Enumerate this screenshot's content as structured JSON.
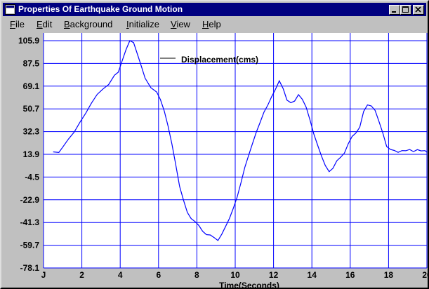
{
  "window": {
    "title": "Properties Of Earthquake Ground Motion",
    "controls": {
      "minimize": "minimize-icon",
      "maximize": "maximize-icon",
      "close": "close-icon"
    }
  },
  "menu": [
    {
      "label": "File",
      "mnemonic": "F"
    },
    {
      "label": "Edit",
      "mnemonic": "E"
    },
    {
      "label": "Background",
      "mnemonic": "B"
    },
    {
      "label": "Initialize",
      "mnemonic": "I"
    },
    {
      "label": "View",
      "mnemonic": "V"
    },
    {
      "label": "Help",
      "mnemonic": "H"
    }
  ],
  "colors": {
    "plot_bg": "#ffffff",
    "grid": "#0000ff",
    "trace": "#0000ff",
    "titlebar": "#000080"
  },
  "chart_data": {
    "type": "line",
    "title": "Displacement(cms)",
    "xlabel": "Time(Seconds)",
    "ylabel": "",
    "xlim": [
      0,
      20
    ],
    "ylim": [
      -78.1,
      105.9
    ],
    "x_tick_labels": [
      "J",
      "2",
      "4",
      "6",
      "8",
      "10",
      "12",
      "14",
      "16",
      "18",
      "20"
    ],
    "y_tick_labels": [
      "105.9",
      "87.5",
      "69.1",
      "50.7",
      "32.3",
      "13.9",
      "-4.5",
      "-22.9",
      "-41.3",
      "-59.7",
      "-78.1"
    ],
    "grid": true,
    "series": [
      {
        "x": [
          0.5,
          0.8,
          1.0,
          1.3,
          1.6,
          1.9,
          2.2,
          2.5,
          2.8,
          3.1,
          3.4,
          3.7,
          3.9,
          4.1,
          4.3,
          4.5,
          4.7,
          4.9,
          5.1,
          5.3,
          5.6,
          5.9,
          6.1,
          6.3,
          6.5,
          6.7,
          6.9,
          7.1,
          7.3,
          7.5,
          7.7,
          7.9,
          8.1,
          8.3,
          8.5,
          8.7,
          8.9,
          9.1,
          9.3,
          9.5,
          9.7,
          9.9,
          10.1,
          10.3,
          10.5,
          10.7,
          10.9,
          11.1,
          11.3,
          11.5,
          11.7,
          11.9,
          12.1,
          12.3,
          12.5,
          12.7,
          12.9,
          13.1,
          13.3,
          13.5,
          13.7,
          13.9,
          14.1,
          14.3,
          14.5,
          14.7,
          14.9,
          15.1,
          15.3,
          15.5,
          15.7,
          15.9,
          16.1,
          16.3,
          16.5,
          16.7,
          16.9,
          17.1,
          17.3,
          17.5,
          17.7,
          17.9,
          18.1,
          18.3,
          18.5,
          18.7,
          18.9,
          19.1,
          19.3,
          19.5,
          19.7,
          19.9,
          20.0
        ],
        "y": [
          15.9,
          15.4,
          19.7,
          26.3,
          31.9,
          39.9,
          47.2,
          55.4,
          62.4,
          66.8,
          70.4,
          77.9,
          80.4,
          89.5,
          98.5,
          105.9,
          104.3,
          94.8,
          85.4,
          75.5,
          67.8,
          64.4,
          58.2,
          48.9,
          36.4,
          22.1,
          5.2,
          -12.1,
          -23.1,
          -33.1,
          -38.1,
          -40.5,
          -43.6,
          -48.4,
          -51.1,
          -51.4,
          -53.5,
          -55.9,
          -50.7,
          -44.5,
          -38.0,
          -29.8,
          -20.8,
          -9.1,
          3.4,
          13.0,
          22.6,
          31.8,
          39.8,
          48.0,
          53.7,
          60.6,
          66.5,
          73.4,
          67.1,
          57.8,
          55.7,
          57.0,
          62.2,
          58.4,
          52.1,
          41.7,
          30.5,
          21.3,
          12.6,
          4.8,
          -0.1,
          2.6,
          8.7,
          11.6,
          15.0,
          22.6,
          28.4,
          31.2,
          35.9,
          48.6,
          53.9,
          53.1,
          49.4,
          40.4,
          31.2,
          20.2,
          17.8,
          17.0,
          15.5,
          16.9,
          16.8,
          17.8,
          16.1,
          17.7,
          16.7,
          16.9,
          15.6
        ]
      }
    ]
  }
}
